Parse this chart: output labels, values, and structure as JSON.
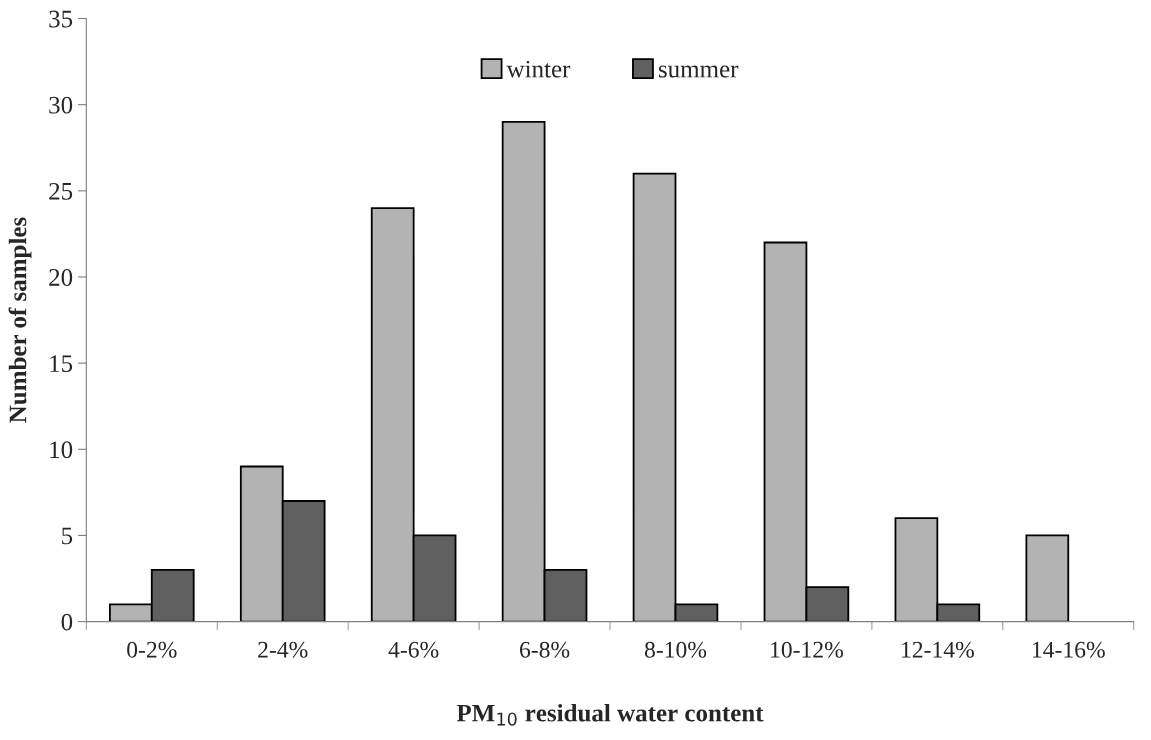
{
  "chart_data": {
    "type": "bar",
    "xlabel": "PM$_{10}$ residual water content",
    "ylabel": "Number of samples",
    "categories": [
      "0-2%",
      "2-4%",
      "4-6%",
      "6-8%",
      "8-10%",
      "10-12%",
      "12-14%",
      "14-16%"
    ],
    "series": [
      {
        "name": "winter",
        "color": "#b3b3b3",
        "values": [
          1,
          9,
          24,
          29,
          26,
          22,
          6,
          5
        ]
      },
      {
        "name": "summer",
        "color": "#606060",
        "values": [
          3,
          7,
          5,
          3,
          1,
          2,
          1,
          null
        ]
      }
    ],
    "ylim": [
      0,
      35
    ],
    "yticks": [
      0,
      5,
      10,
      15,
      20,
      25,
      30,
      35
    ],
    "grid": false,
    "legend": "top"
  }
}
